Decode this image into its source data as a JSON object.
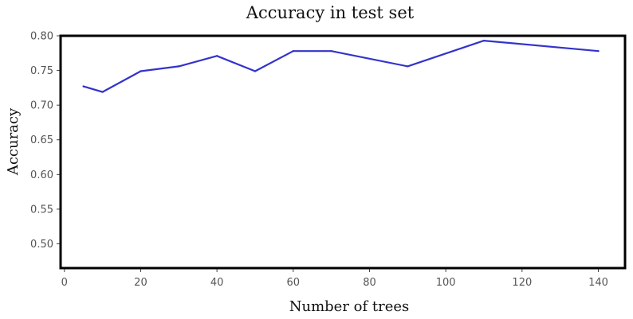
{
  "chart_data": {
    "type": "line",
    "title": "Accuracy in test set",
    "xlabel": "Number of trees",
    "ylabel": "Accuracy",
    "xlim": [
      -1,
      147
    ],
    "ylim": [
      0.465,
      0.8
    ],
    "xticks": [
      0,
      20,
      40,
      60,
      80,
      100,
      120,
      140
    ],
    "xtick_labels": [
      "0",
      "20",
      "40",
      "60",
      "80",
      "100",
      "120",
      "140"
    ],
    "yticks": [
      0.5,
      0.55,
      0.6,
      0.65,
      0.7,
      0.75,
      0.8
    ],
    "ytick_labels": [
      "0.50",
      "0.55",
      "0.60",
      "0.65",
      "0.70",
      "0.75",
      "0.80"
    ],
    "grid": false,
    "legend": false,
    "series": [
      {
        "color": "#3333cc",
        "x": [
          5,
          10,
          20,
          30,
          40,
          50,
          60,
          70,
          90,
          110,
          140
        ],
        "y": [
          0.727,
          0.719,
          0.749,
          0.756,
          0.771,
          0.749,
          0.778,
          0.778,
          0.756,
          0.793,
          0.778
        ]
      }
    ]
  }
}
